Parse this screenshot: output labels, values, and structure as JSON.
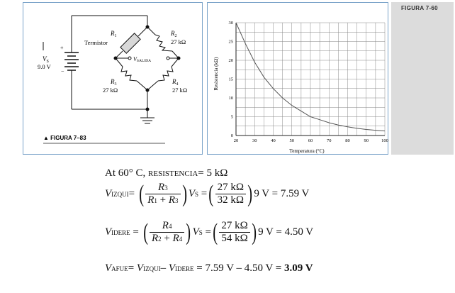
{
  "circuit": {
    "r1": "R",
    "r1_sub": "1",
    "thermistor_label": "Termistor",
    "r2": "R",
    "r2_sub": "2",
    "r2_value": "27 kΩ",
    "vs": "V",
    "vs_sub": "S",
    "vs_value": "9.0 V",
    "plus": "+",
    "minus": "−",
    "vout": "V",
    "vout_sub": "SALIDA",
    "r3": "R",
    "r3_sub": "3",
    "r3_value": "27 kΩ",
    "r4": "R",
    "r4_sub": "4",
    "r4_value": "27 kΩ",
    "caption": "▲ FIGURA 7–83"
  },
  "figure_tag": "FIGURA 7-60",
  "chart_data": {
    "type": "line",
    "title": "",
    "xlabel": "Temperatura (°C)",
    "ylabel": "Resistencia (kΩ)",
    "xlim": [
      20,
      100
    ],
    "ylim": [
      0,
      30
    ],
    "xticks": [
      "20",
      "30",
      "40",
      "50",
      "60",
      "70",
      "80",
      "90",
      "100"
    ],
    "yticks": [
      "0",
      "5",
      "10",
      "15",
      "20",
      "25",
      "30"
    ],
    "grid": true,
    "series": [
      {
        "name": "Termistor",
        "x": [
          20,
          25,
          30,
          35,
          40,
          45,
          50,
          55,
          60,
          65,
          70,
          75,
          80,
          85,
          90,
          95,
          100
        ],
        "y": [
          30,
          24.5,
          19.5,
          15.5,
          12.5,
          10,
          8,
          6.5,
          5,
          4.2,
          3.4,
          2.8,
          2.3,
          1.9,
          1.6,
          1.4,
          1.2
        ]
      }
    ]
  },
  "calc": {
    "line1_prefix": "At 60° C, ",
    "line1_word": "RESISTENCIA",
    "line1_rest": "= 5 kΩ",
    "v": "V",
    "izqui": "IZQUI",
    "idere": "IDERE",
    "afue": "AFUE",
    "eq": "=",
    "r": "R",
    "plus": "+",
    "s": "S",
    "frac1_num_sub": "3",
    "frac1_den_a": "1",
    "frac1_den_b": "3",
    "frac1_val_num": "27 kΩ",
    "frac1_val_den": "32 kΩ",
    "line2_result": "9 V  = 7.59 V",
    "frac2_num_sub": "4",
    "frac2_den_a": "2",
    "frac2_den_b": "4",
    "frac2_val_num": "27 kΩ",
    "frac2_val_den": "54 kΩ",
    "line3_result": "9 V  = 4.50 V",
    "line4_mid": " = 7.59 V – 4.50 V = ",
    "line4_result": "3.09 V",
    "minus": "–"
  }
}
